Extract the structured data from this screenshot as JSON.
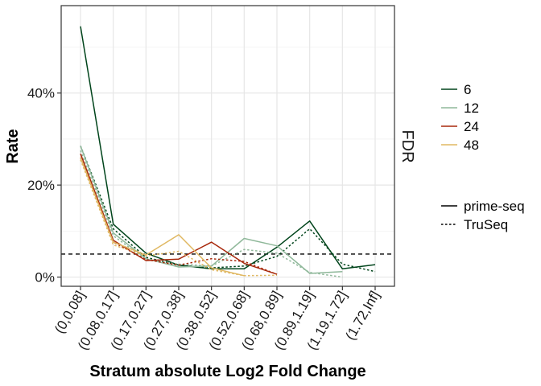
{
  "chart_data": {
    "type": "line",
    "xlabel": "Stratum absolute Log2 Fold Change",
    "ylabel": "Rate",
    "facet_label": "FDR",
    "categories": [
      "(0,0.08]",
      "(0.08,0.17]",
      "(0.17,0.27]",
      "(0.27,0.38]",
      "(0.38,0.52]",
      "(0.52,0.68]",
      "(0.68,0.89]",
      "(0.89,1.19]",
      "(1.19,1.72]",
      "(1.72,Inf]"
    ],
    "ylim": [
      -2,
      59
    ],
    "y_ticks": [
      0,
      20,
      40
    ],
    "y_tick_labels": [
      "0%",
      "20%",
      "40%"
    ],
    "reference_line": 5,
    "grid": true,
    "legend_position": "right",
    "color_legend": {
      "entries": [
        {
          "label": "6",
          "color": "#00441b"
        },
        {
          "label": "12",
          "color": "#8fb89a"
        },
        {
          "label": "24",
          "color": "#a8290c"
        },
        {
          "label": "48",
          "color": "#e0b862"
        }
      ]
    },
    "linetype_legend": {
      "entries": [
        {
          "label": "prime-seq",
          "dash": "solid"
        },
        {
          "label": "TruSeq",
          "dash": "dotted"
        }
      ]
    },
    "series": [
      {
        "group": "6",
        "method": "prime-seq",
        "color": "#00441b",
        "dash": "solid",
        "values": [
          54.5,
          11.5,
          5.2,
          2.6,
          1.8,
          1.8,
          6.5,
          12.2,
          1.8,
          2.7
        ]
      },
      {
        "group": "6",
        "method": "TruSeq",
        "color": "#00441b",
        "dash": "dotted",
        "values": [
          28.5,
          10.5,
          4.3,
          2.6,
          2.0,
          2.4,
          4.5,
          10.5,
          2.8,
          1.2
        ]
      },
      {
        "group": "12",
        "method": "prime-seq",
        "color": "#8fb89a",
        "dash": "solid",
        "values": [
          28.5,
          9.6,
          4.0,
          2.2,
          2.4,
          8.4,
          6.8,
          0.8,
          1.2,
          null
        ]
      },
      {
        "group": "12",
        "method": "TruSeq",
        "color": "#8fb89a",
        "dash": "dotted",
        "values": [
          27.5,
          9.0,
          3.8,
          2.8,
          2.4,
          6.0,
          5.2,
          1.0,
          0.0,
          null
        ]
      },
      {
        "group": "24",
        "method": "prime-seq",
        "color": "#a8290c",
        "dash": "solid",
        "values": [
          26.8,
          8.0,
          3.6,
          3.9,
          7.6,
          3.0,
          0.6,
          null,
          null,
          null
        ]
      },
      {
        "group": "24",
        "method": "TruSeq",
        "color": "#a8290c",
        "dash": "dotted",
        "values": [
          26.0,
          7.6,
          3.8,
          2.6,
          4.0,
          3.4,
          0.6,
          null,
          null,
          null
        ]
      },
      {
        "group": "48",
        "method": "prime-seq",
        "color": "#e0b862",
        "dash": "solid",
        "values": [
          26.0,
          7.6,
          4.8,
          9.2,
          2.0,
          0.3,
          null,
          null,
          null,
          null
        ]
      },
      {
        "group": "48",
        "method": "TruSeq",
        "color": "#e0b862",
        "dash": "dotted",
        "values": [
          25.5,
          7.0,
          4.6,
          5.6,
          1.6,
          0.3,
          0.4,
          null,
          null,
          null
        ]
      }
    ]
  }
}
